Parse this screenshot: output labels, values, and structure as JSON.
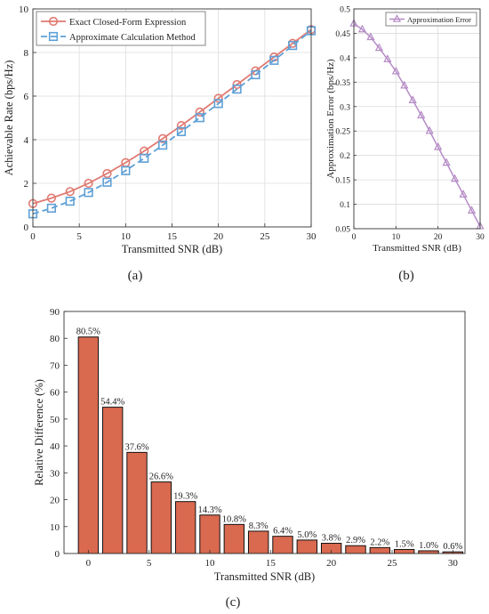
{
  "colors": {
    "exact": "#e07a72",
    "approx": "#5fa0d6",
    "error": "#b58bc6",
    "bar": "#d9694f"
  },
  "captions": {
    "a": "(a)",
    "b": "(b)",
    "c": "(c)"
  },
  "chart_data": [
    {
      "type": "line",
      "xlabel": "Transmitted SNR (dB)",
      "ylabel": "Achievable Rate (bps/Hz)",
      "xlim": [
        0,
        30
      ],
      "ylim": [
        0,
        10
      ],
      "xticks": [
        "0",
        "5",
        "10",
        "15",
        "20",
        "25",
        "30"
      ],
      "yticks": [
        "0",
        "2",
        "4",
        "6",
        "8",
        "10"
      ],
      "grid": true,
      "legend_position": "top-left",
      "x": [
        0,
        2,
        4,
        6,
        8,
        10,
        12,
        14,
        16,
        18,
        20,
        22,
        24,
        26,
        28,
        30
      ],
      "series": [
        {
          "name": "Exact Closed-Form Expression",
          "marker": "circle",
          "values": [
            1.07,
            1.32,
            1.62,
            2.0,
            2.45,
            2.95,
            3.48,
            4.05,
            4.65,
            5.27,
            5.9,
            6.53,
            7.16,
            7.79,
            8.42,
            9.05
          ]
        },
        {
          "name": "Approximate Calculation Method",
          "marker": "square",
          "values": [
            0.6,
            0.86,
            1.18,
            1.58,
            2.05,
            2.58,
            3.15,
            3.75,
            4.37,
            5.01,
            5.66,
            6.32,
            6.98,
            7.64,
            8.32,
            9.0
          ]
        }
      ]
    },
    {
      "type": "line",
      "xlabel": "Transmitted SNR (dB)",
      "ylabel": "Approximation Error (bps/Hz)",
      "xlim": [
        0,
        30
      ],
      "ylim": [
        0.05,
        0.5
      ],
      "xticks": [
        "0",
        "10",
        "20",
        "30"
      ],
      "yticks": [
        "0.05",
        "0.1",
        "0.15",
        "0.2",
        "0.25",
        "0.3",
        "0.35",
        "0.4",
        "0.45",
        "0.5"
      ],
      "grid": true,
      "legend_position": "top-right",
      "x": [
        0,
        2,
        4,
        6,
        8,
        10,
        12,
        14,
        16,
        18,
        20,
        22,
        24,
        26,
        28,
        30
      ],
      "series": [
        {
          "name": "Approximation Error",
          "marker": "triangle",
          "values": [
            0.47,
            0.458,
            0.442,
            0.42,
            0.397,
            0.372,
            0.343,
            0.313,
            0.282,
            0.25,
            0.217,
            0.185,
            0.152,
            0.12,
            0.087,
            0.055
          ]
        }
      ]
    },
    {
      "type": "bar",
      "xlabel": "Transmitted SNR (dB)",
      "ylabel": "Relative Difference (%)",
      "xlim": [
        -2,
        31
      ],
      "ylim": [
        0,
        90
      ],
      "xticks": [
        "0",
        "5",
        "10",
        "15",
        "20",
        "25",
        "30"
      ],
      "yticks": [
        "0",
        "10",
        "20",
        "30",
        "40",
        "50",
        "60",
        "70",
        "80",
        "90"
      ],
      "grid": false,
      "x": [
        0,
        2,
        4,
        6,
        8,
        10,
        12,
        14,
        16,
        18,
        20,
        22,
        24,
        26,
        28,
        30
      ],
      "values": [
        80.5,
        54.4,
        37.6,
        26.6,
        19.3,
        14.3,
        10.8,
        8.3,
        6.4,
        5.0,
        3.8,
        2.9,
        2.2,
        1.5,
        1.0,
        0.6
      ],
      "data_labels": [
        "80.5%",
        "54.4%",
        "37.6%",
        "26.6%",
        "19.3%",
        "14.3%",
        "10.8%",
        "8.3%",
        "6.4%",
        "5.0%",
        "3.8%",
        "2.9%",
        "2.2%",
        "1.5%",
        "1.0%",
        "0.6%"
      ]
    }
  ]
}
